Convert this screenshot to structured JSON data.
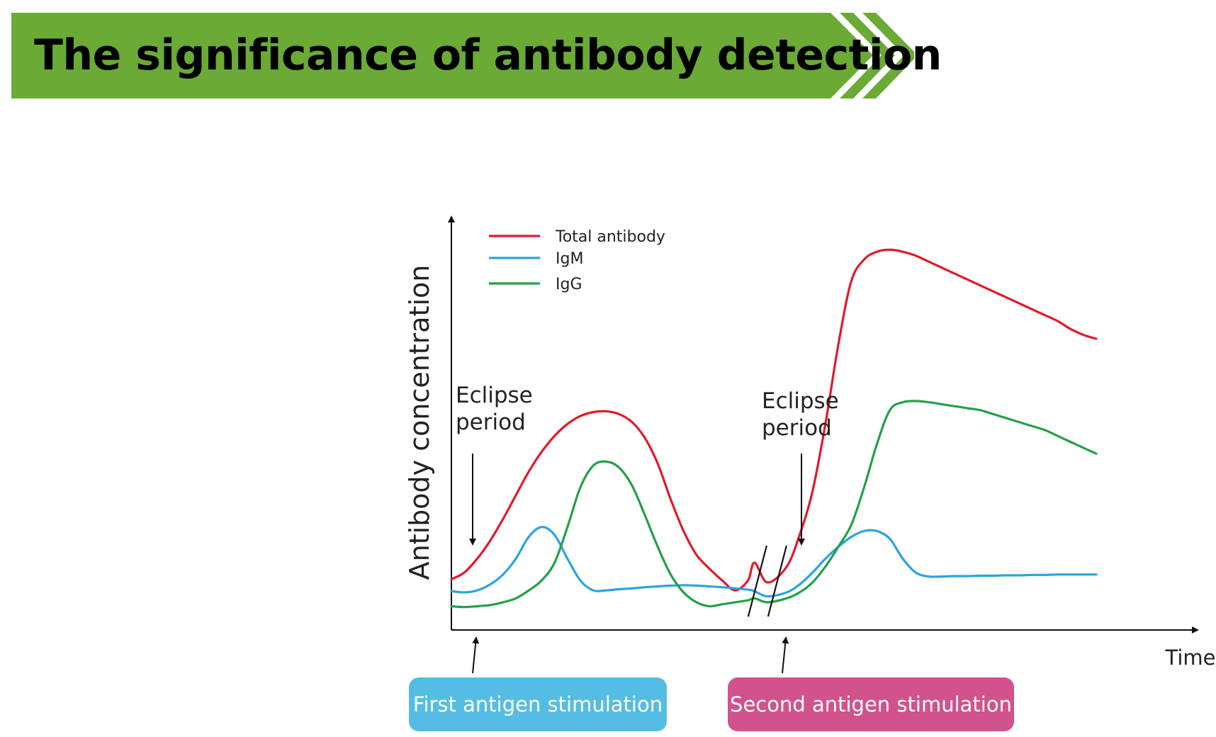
{
  "header": {
    "title": "The significance of antibody detection",
    "color": "#6aaa35"
  },
  "chart_data": {
    "type": "line",
    "title": "",
    "xlabel": "Time",
    "ylabel": "Antibody concentration",
    "xlim": [
      0,
      100
    ],
    "ylim": [
      0,
      100
    ],
    "axis_break_at_x": 49,
    "grid": false,
    "legend_position": "top-left",
    "series": [
      {
        "name": "Total antibody",
        "color": "#e3192b",
        "x": [
          0,
          2,
          4,
          6,
          8,
          10,
          12,
          14,
          16,
          18,
          20,
          22,
          24,
          26,
          28,
          30,
          32,
          34,
          36,
          38,
          40,
          42,
          44,
          46,
          47,
          49,
          52,
          54,
          56,
          58,
          60,
          62,
          64,
          66,
          68,
          70,
          72,
          74,
          76,
          78,
          80,
          82,
          84,
          86,
          88,
          90,
          92,
          94,
          96,
          98,
          100
        ],
        "y": [
          12.8,
          14.5,
          18.0,
          22.5,
          28.0,
          34.0,
          40.0,
          45.0,
          49.0,
          52.0,
          54.0,
          55.0,
          55.2,
          54.5,
          52.5,
          48.5,
          42.0,
          33.0,
          25.0,
          19.0,
          15.5,
          12.5,
          10.0,
          12.5,
          17.0,
          12.0,
          16.0,
          24.0,
          35.0,
          52.0,
          72.0,
          88.0,
          93.5,
          95.5,
          96.0,
          95.5,
          94.5,
          93.0,
          91.5,
          90.0,
          88.5,
          87.0,
          85.5,
          84.0,
          82.5,
          81.0,
          79.5,
          78.0,
          76.0,
          74.5,
          73.5
        ]
      },
      {
        "name": "IgM",
        "color": "#2ba4dd",
        "x": [
          0,
          2,
          4,
          6,
          8,
          10,
          12,
          14,
          16,
          18,
          20,
          22,
          24,
          26,
          28,
          30,
          32,
          34,
          36,
          38,
          40,
          42,
          44,
          46,
          47,
          49,
          52,
          54,
          56,
          58,
          60,
          62,
          64,
          66,
          68,
          70,
          72,
          74,
          76,
          78,
          80,
          82,
          84,
          86,
          88,
          90,
          92,
          94,
          96,
          98,
          100
        ],
        "y": [
          9.8,
          9.5,
          10.0,
          11.5,
          14.0,
          18.0,
          23.5,
          26.0,
          24.0,
          18.0,
          12.5,
          10.0,
          10.0,
          10.3,
          10.5,
          10.8,
          11.0,
          11.2,
          11.3,
          11.2,
          11.0,
          10.8,
          10.5,
          10.2,
          9.8,
          8.5,
          9.5,
          11.5,
          14.5,
          18.0,
          21.0,
          23.5,
          25.0,
          25.0,
          23.0,
          18.0,
          14.5,
          13.5,
          13.5,
          13.6,
          13.6,
          13.7,
          13.7,
          13.8,
          13.8,
          13.9,
          13.9,
          14.0,
          14.0,
          14.0,
          14.0
        ]
      },
      {
        "name": "IgG",
        "color": "#23a04a",
        "x": [
          0,
          2,
          4,
          6,
          8,
          10,
          12,
          14,
          16,
          18,
          20,
          22,
          24,
          26,
          28,
          30,
          32,
          34,
          36,
          38,
          40,
          42,
          44,
          46,
          47,
          49,
          52,
          54,
          56,
          58,
          60,
          62,
          64,
          66,
          68,
          70,
          72,
          74,
          76,
          78,
          80,
          82,
          84,
          86,
          88,
          90,
          92,
          94,
          96,
          98,
          100
        ],
        "y": [
          6.0,
          5.8,
          6.0,
          6.3,
          7.0,
          8.0,
          10.0,
          12.5,
          17.0,
          26.0,
          36.0,
          41.5,
          42.5,
          41.0,
          36.5,
          29.0,
          21.0,
          14.0,
          9.5,
          7.0,
          6.0,
          6.5,
          7.0,
          7.5,
          8.0,
          7.0,
          8.0,
          9.5,
          12.0,
          16.0,
          21.0,
          26.5,
          36.0,
          47.0,
          55.5,
          57.5,
          57.8,
          57.5,
          57.0,
          56.5,
          56.0,
          55.5,
          54.5,
          53.5,
          52.5,
          51.5,
          50.5,
          49.0,
          47.5,
          46.0,
          44.5
        ]
      }
    ],
    "annotations": [
      {
        "text": "Eclipse period",
        "lines": [
          "Eclipse",
          "period"
        ],
        "x": 3
      },
      {
        "text": "Eclipse period",
        "lines": [
          "Eclipse",
          "period"
        ],
        "x": 53
      }
    ],
    "events": [
      {
        "label": "First antigen stimulation",
        "x": 3.5,
        "color": "#55bde4"
      },
      {
        "label": "Second antigen stimulation",
        "x": 51.5,
        "color": "#d2528c"
      }
    ]
  }
}
